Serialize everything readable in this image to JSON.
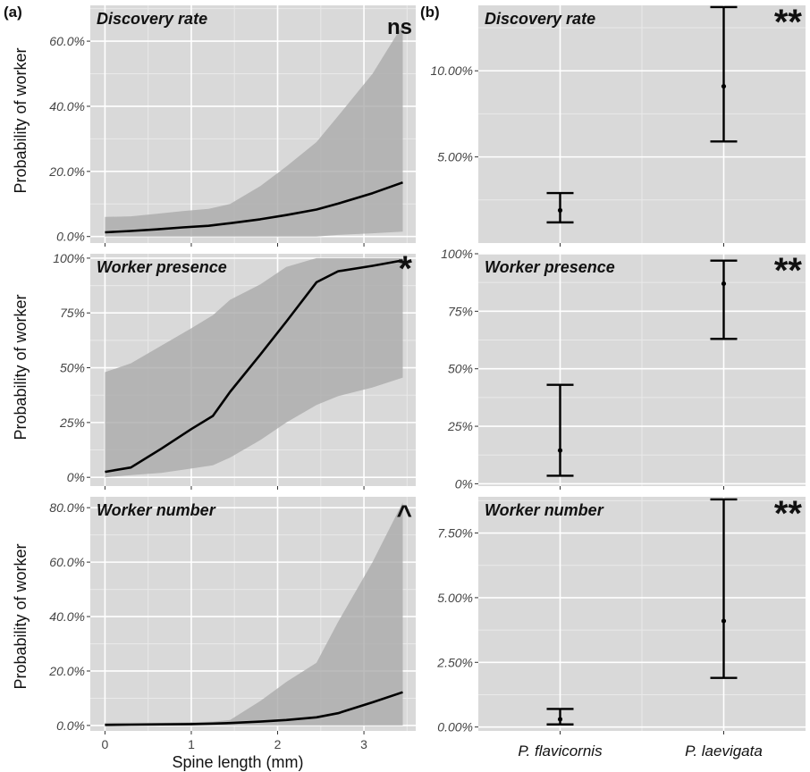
{
  "panel_labels": [
    "(a)",
    "(b)"
  ],
  "y_axis_label": "Probability of worker",
  "x_axis_label_a": "Spine length (mm)",
  "chart_data": [
    {
      "id": "a1",
      "type": "line",
      "panel": "(a)",
      "title": "Discovery rate",
      "significance": "ns",
      "ylabel": "Probability of worker",
      "xlabel": "",
      "xlim": [
        -0.17,
        3.6
      ],
      "ylim": [
        -0.02,
        0.71
      ],
      "x_ticks": [
        0,
        1,
        2,
        3
      ],
      "x_tick_labels": [
        "",
        "",
        "",
        ""
      ],
      "y_ticks": [
        0.0,
        0.2,
        0.4,
        0.6
      ],
      "y_tick_labels": [
        "0.0%",
        "20.0%",
        "40.0%",
        "60.0%"
      ],
      "series": [
        {
          "x": [
            0,
            0.3,
            0.6,
            0.9,
            1.2,
            1.45,
            1.8,
            2.1,
            2.45,
            2.7,
            3.1,
            3.45
          ],
          "y": [
            0.013,
            0.017,
            0.022,
            0.028,
            0.033,
            0.041,
            0.053,
            0.066,
            0.083,
            0.101,
            0.133,
            0.166
          ],
          "lower": [
            0.0,
            0.0,
            0.0,
            0.0,
            0.0,
            0.0,
            0.0,
            0.0,
            0.0,
            0.005,
            0.01,
            0.015
          ],
          "upper": [
            0.06,
            0.062,
            0.07,
            0.078,
            0.085,
            0.1,
            0.155,
            0.215,
            0.29,
            0.37,
            0.5,
            0.65
          ]
        }
      ]
    },
    {
      "id": "a2",
      "type": "line",
      "panel": "(a)",
      "title": "Worker presence",
      "significance": "*",
      "ylabel": "Probability of worker",
      "xlabel": "",
      "xlim": [
        -0.17,
        3.6
      ],
      "ylim": [
        -0.04,
        1.02
      ],
      "x_ticks": [
        0,
        1,
        2,
        3
      ],
      "x_tick_labels": [
        "",
        "",
        "",
        ""
      ],
      "y_ticks": [
        0,
        0.25,
        0.5,
        0.75,
        1.0
      ],
      "y_tick_labels": [
        "0%",
        "25%",
        "50%",
        "75%",
        "100%"
      ],
      "series": [
        {
          "x": [
            0,
            0.3,
            0.65,
            1.0,
            1.25,
            1.45,
            1.8,
            2.1,
            2.45,
            2.7,
            3.1,
            3.45
          ],
          "y": [
            0.025,
            0.045,
            0.13,
            0.22,
            0.28,
            0.39,
            0.56,
            0.71,
            0.89,
            0.94,
            0.965,
            0.99
          ],
          "lower": [
            0.0,
            0.01,
            0.02,
            0.04,
            0.055,
            0.09,
            0.17,
            0.25,
            0.33,
            0.37,
            0.41,
            0.455
          ],
          "upper": [
            0.48,
            0.52,
            0.6,
            0.68,
            0.74,
            0.81,
            0.88,
            0.96,
            1.0,
            1.0,
            1.0,
            1.0
          ]
        }
      ]
    },
    {
      "id": "a3",
      "type": "line",
      "panel": "(a)",
      "title": "Worker number",
      "significance": "^",
      "ylabel": "Probability of worker",
      "xlabel": "Spine length (mm)",
      "xlim": [
        -0.17,
        3.6
      ],
      "ylim": [
        -0.02,
        0.84
      ],
      "x_ticks": [
        0,
        1,
        2,
        3
      ],
      "x_tick_labels": [
        "0",
        "1",
        "2",
        "3"
      ],
      "y_ticks": [
        0.0,
        0.2,
        0.4,
        0.6,
        0.8
      ],
      "y_tick_labels": [
        "0.0%",
        "20.0%",
        "40.0%",
        "60.0%",
        "80.0%"
      ],
      "series": [
        {
          "x": [
            0,
            0.3,
            0.65,
            1.0,
            1.25,
            1.45,
            1.8,
            2.1,
            2.45,
            2.7,
            3.1,
            3.45
          ],
          "y": [
            0.002,
            0.003,
            0.004,
            0.005,
            0.007,
            0.009,
            0.014,
            0.02,
            0.03,
            0.045,
            0.085,
            0.122
          ],
          "lower": [
            0.0,
            0.0,
            0.0,
            0.0,
            0.0,
            0.0,
            0.0,
            0.0,
            0.0,
            0.0,
            0.0,
            0.0
          ],
          "upper": [
            0.01,
            0.01,
            0.01,
            0.012,
            0.014,
            0.02,
            0.09,
            0.16,
            0.23,
            0.38,
            0.6,
            0.82
          ]
        }
      ]
    },
    {
      "id": "b1",
      "type": "errorbar",
      "panel": "(b)",
      "title": "Discovery rate",
      "significance": "**",
      "ylabel": "",
      "xlabel": "",
      "categories": [
        "P. flavicornis",
        "P. laevigata"
      ],
      "x_tick_labels": [
        "",
        ""
      ],
      "ylim": [
        0.0,
        0.138
      ],
      "y_ticks": [
        0.05,
        0.1
      ],
      "y_tick_labels": [
        "5.00%",
        "10.00%"
      ],
      "points": [
        {
          "estimate": 0.019,
          "lower": 0.012,
          "upper": 0.029
        },
        {
          "estimate": 0.091,
          "lower": 0.059,
          "upper": 0.137
        }
      ]
    },
    {
      "id": "b2",
      "type": "errorbar",
      "panel": "(b)",
      "title": "Worker presence",
      "significance": "**",
      "ylabel": "",
      "xlabel": "",
      "categories": [
        "P. flavicornis",
        "P. laevigata"
      ],
      "x_tick_labels": [
        "",
        ""
      ],
      "ylim": [
        -0.01,
        1.0
      ],
      "y_ticks": [
        0,
        0.25,
        0.5,
        0.75,
        1.0
      ],
      "y_tick_labels": [
        "0%",
        "25%",
        "50%",
        "75%",
        "100%"
      ],
      "points": [
        {
          "estimate": 0.145,
          "lower": 0.035,
          "upper": 0.43
        },
        {
          "estimate": 0.87,
          "lower": 0.63,
          "upper": 0.97
        }
      ]
    },
    {
      "id": "b3",
      "type": "errorbar",
      "panel": "(b)",
      "title": "Worker number",
      "significance": "**",
      "ylabel": "",
      "xlabel": "",
      "categories": [
        "P. flavicornis",
        "P. laevigata"
      ],
      "x_tick_labels": [
        "P. flavicornis",
        "P. laevigata"
      ],
      "ylim": [
        -0.0015,
        0.089
      ],
      "y_ticks": [
        0.0,
        0.025,
        0.05,
        0.075
      ],
      "y_tick_labels": [
        "0.00%",
        "2.50%",
        "5.00%",
        "7.50%"
      ],
      "points": [
        {
          "estimate": 0.003,
          "lower": 0.001,
          "upper": 0.007
        },
        {
          "estimate": 0.041,
          "lower": 0.019,
          "upper": 0.088
        }
      ]
    }
  ],
  "colors": {
    "panel_bg": "#d9d9d9",
    "grid_major": "#ffffff",
    "grid_minor": "#e9e9e9",
    "ribbon": "#a9a9a9",
    "line": "#000000"
  }
}
